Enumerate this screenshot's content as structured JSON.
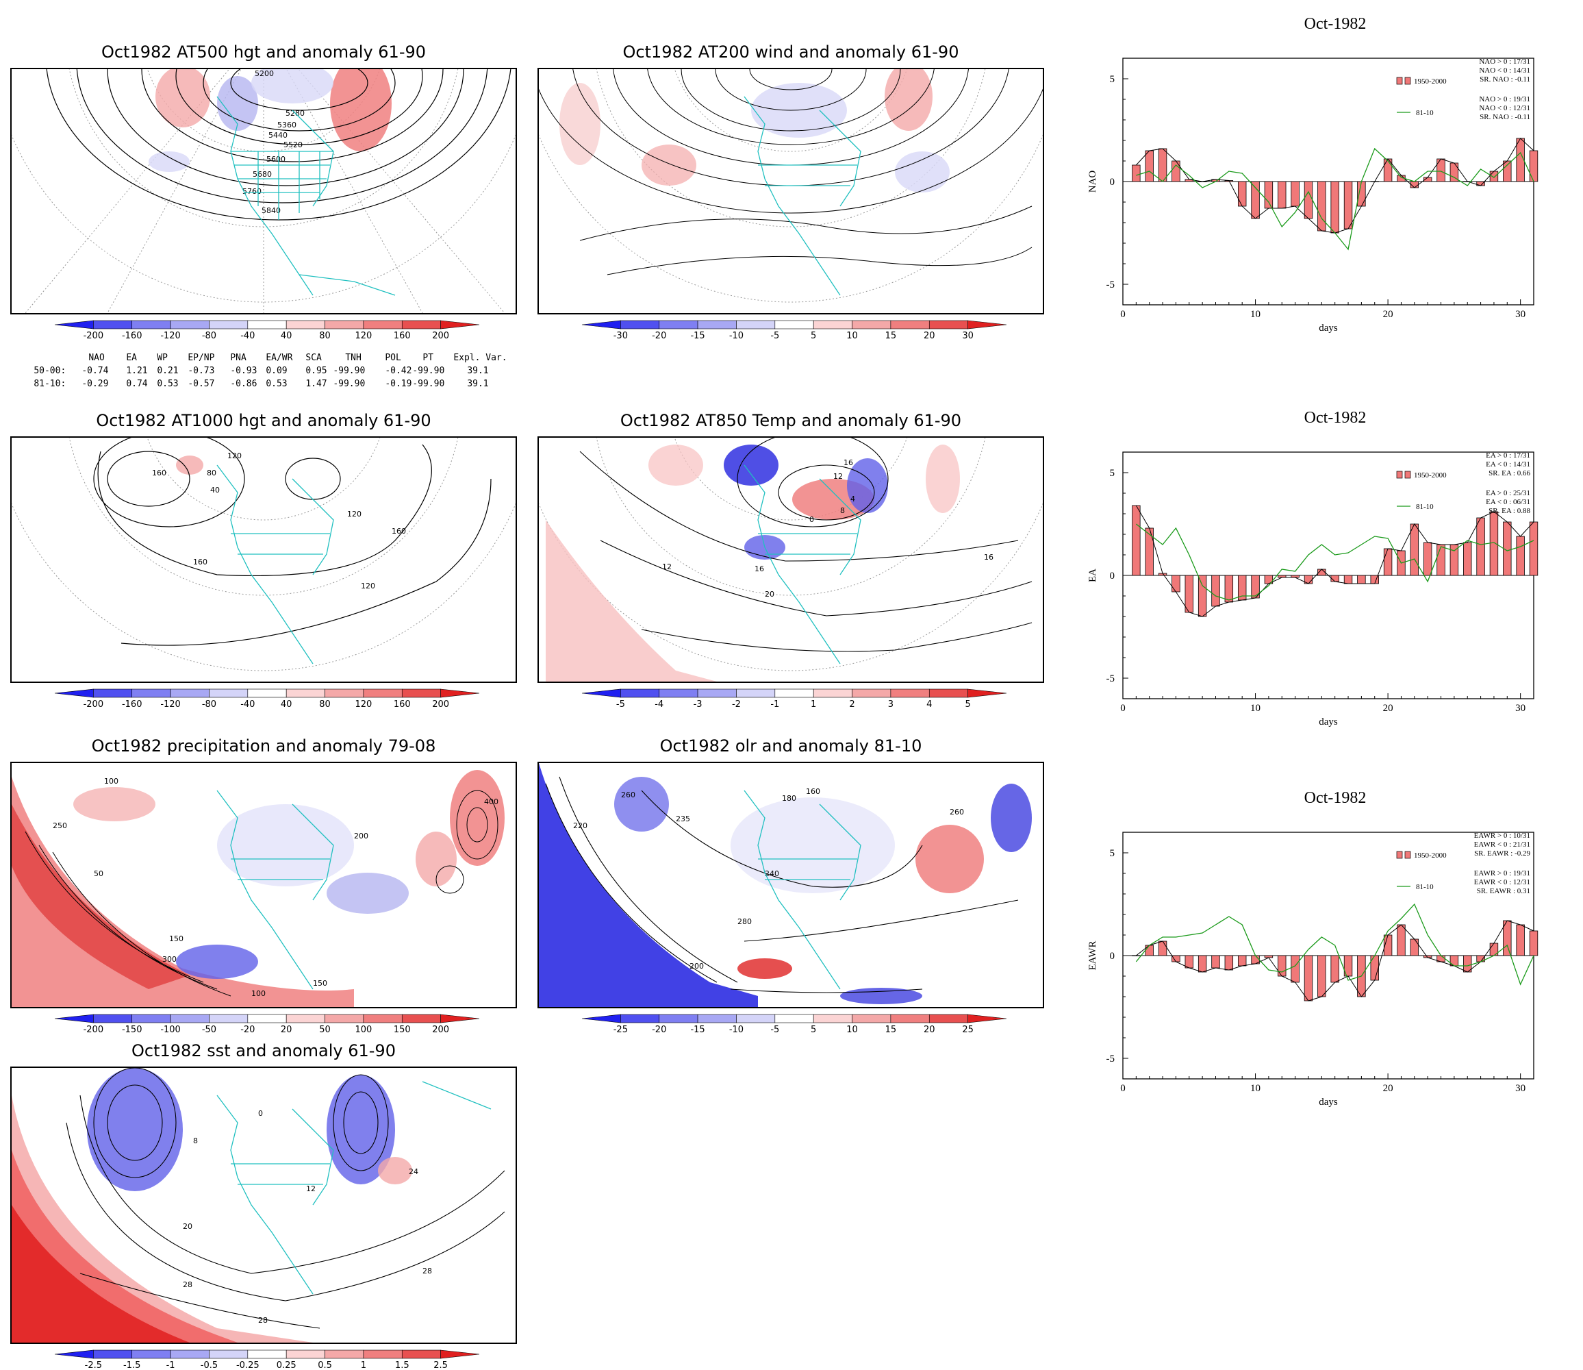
{
  "maps": [
    {
      "id": "at500",
      "title": "Oct1982 AT500 hgt and anomaly 61-90",
      "contour_labels": [
        "5200",
        "5280",
        "5360",
        "5440",
        "5520",
        "5600",
        "5680",
        "5760",
        "5840"
      ],
      "colorbar": [
        "-200",
        "-160",
        "-120",
        "-80",
        "-40",
        "40",
        "80",
        "120",
        "160",
        "200"
      ]
    },
    {
      "id": "at200",
      "title": "Oct1982 AT200 wind and anomaly 61-90",
      "contour_labels": [],
      "colorbar": [
        "-30",
        "-20",
        "-15",
        "-10",
        "-5",
        "5",
        "10",
        "15",
        "20",
        "30"
      ]
    },
    {
      "id": "at1000",
      "title": "Oct1982 AT1000 hgt and anomaly 61-90",
      "contour_labels": [
        "160",
        "120",
        "80",
        "40",
        "160",
        "120",
        "160",
        "120"
      ],
      "colorbar": [
        "-200",
        "-160",
        "-120",
        "-80",
        "-40",
        "40",
        "80",
        "120",
        "160",
        "200"
      ]
    },
    {
      "id": "at850",
      "title": "Oct1982 AT850 Temp and anomaly 61-90",
      "contour_labels": [
        "16",
        "12",
        "8",
        "4",
        "0",
        "20",
        "16",
        "12",
        "16"
      ],
      "colorbar": [
        "-5",
        "-4",
        "-3",
        "-2",
        "-1",
        "1",
        "2",
        "3",
        "4",
        "5"
      ]
    },
    {
      "id": "precip",
      "title": "Oct1982 precipitation and anomaly 79-08",
      "contour_labels": [
        "100",
        "250",
        "50",
        "150",
        "200",
        "400",
        "300",
        "150",
        "100"
      ],
      "colorbar": [
        "-200",
        "-150",
        "-100",
        "-50",
        "-20",
        "20",
        "50",
        "100",
        "150",
        "200"
      ]
    },
    {
      "id": "olr",
      "title": "Oct1982 olr and anomaly 81-10",
      "contour_labels": [
        "235",
        "260",
        "220",
        "240",
        "280",
        "200",
        "180",
        "160",
        "260"
      ],
      "colorbar": [
        "-25",
        "-20",
        "-15",
        "-10",
        "-5",
        "5",
        "10",
        "15",
        "20",
        "25"
      ]
    },
    {
      "id": "sst",
      "title": "Oct1982 sst and anomaly 61-90",
      "contour_labels": [
        "0",
        "8",
        "12",
        "24",
        "20",
        "28",
        "28",
        "28"
      ],
      "colorbar": [
        "-2.5",
        "-1.5",
        "-1",
        "-0.5",
        "-0.25",
        "0.25",
        "0.5",
        "1",
        "1.5",
        "2.5"
      ]
    }
  ],
  "index_table": {
    "header": [
      "NAO",
      "EA",
      "WP",
      "EP/NP",
      "PNA",
      "EA/WR",
      "SCA",
      "TNH",
      "POL",
      "PT",
      "Expl. Var."
    ],
    "rows": [
      {
        "label": "50-00:",
        "values": [
          "-0.74",
          "1.21",
          "0.21",
          "-0.73",
          "-0.93",
          "0.09",
          "0.95",
          "-99.90",
          "-0.42",
          "-99.90",
          "39.1"
        ]
      },
      {
        "label": "81-10:",
        "values": [
          "-0.29",
          "0.74",
          "0.53",
          "-0.57",
          "-0.86",
          "0.53",
          "1.47",
          "-99.90",
          "-0.19",
          "-99.90",
          "39.1"
        ]
      }
    ]
  },
  "chart_data": [
    {
      "type": "bar",
      "title": "Oct-1982",
      "xlabel": "days",
      "ylabel": "NAO",
      "xlim": [
        0,
        31
      ],
      "ylim": [
        -6,
        6
      ],
      "xticks": [
        "0",
        "10",
        "20",
        "30"
      ],
      "yticks": [
        "5",
        "0",
        "-5"
      ],
      "legend": {
        "bar_name": "1950-2000",
        "line_name": "81-10",
        "stats1": [
          "NAO > 0 : 17/31",
          "NAO < 0 : 14/31",
          "SR. NAO : -0.11"
        ],
        "stats2": [
          "NAO > 0 : 19/31",
          "NAO < 0 : 12/31",
          "SR. NAO : -0.11"
        ]
      },
      "colors": {
        "bar": "#f07878",
        "line": "#1a9a1a"
      },
      "days": [
        1,
        2,
        3,
        4,
        5,
        6,
        7,
        8,
        9,
        10,
        11,
        12,
        13,
        14,
        15,
        16,
        17,
        18,
        19,
        20,
        21,
        22,
        23,
        24,
        25,
        26,
        27,
        28,
        29,
        30,
        31
      ],
      "series": [
        {
          "name": "1950-2000",
          "values": [
            0.8,
            1.5,
            1.6,
            1.0,
            0.1,
            0.0,
            0.1,
            0.05,
            -1.2,
            -1.8,
            -1.3,
            -1.3,
            -1.2,
            -1.8,
            -2.4,
            -2.5,
            -2.3,
            -1.2,
            0.0,
            1.1,
            0.3,
            -0.3,
            0.2,
            1.1,
            0.9,
            0.0,
            -0.2,
            0.5,
            1.0,
            2.1,
            1.5
          ]
        },
        {
          "name": "81-10",
          "values": [
            0.3,
            0.5,
            0.0,
            0.8,
            0.3,
            -0.3,
            0.0,
            0.5,
            0.4,
            -0.3,
            -1.0,
            -2.2,
            -1.5,
            -0.5,
            -1.8,
            -2.5,
            -3.3,
            0.0,
            1.6,
            1.0,
            0.2,
            0.0,
            0.5,
            0.5,
            0.2,
            -0.2,
            0.6,
            0.2,
            0.8,
            1.4,
            0.0
          ]
        }
      ]
    },
    {
      "type": "bar",
      "title": "Oct-1982",
      "xlabel": "days",
      "ylabel": "EA",
      "xlim": [
        0,
        31
      ],
      "ylim": [
        -6,
        6
      ],
      "xticks": [
        "0",
        "10",
        "20",
        "30"
      ],
      "yticks": [
        "5",
        "0",
        "-5"
      ],
      "legend": {
        "bar_name": "1950-2000",
        "line_name": "81-10",
        "stats1": [
          "EA > 0 : 17/31",
          "EA < 0 : 14/31",
          "SR. EA : 0.66"
        ],
        "stats2": [
          "EA > 0 : 25/31",
          "EA < 0 : 06/31",
          "SR. EA : 0.88"
        ]
      },
      "colors": {
        "bar": "#f07878",
        "line": "#1a9a1a"
      },
      "days": [
        1,
        2,
        3,
        4,
        5,
        6,
        7,
        8,
        9,
        10,
        11,
        12,
        13,
        14,
        15,
        16,
        17,
        18,
        19,
        20,
        21,
        22,
        23,
        24,
        25,
        26,
        27,
        28,
        29,
        30,
        31
      ],
      "series": [
        {
          "name": "1950-2000",
          "values": [
            3.4,
            2.3,
            0.1,
            -0.8,
            -1.8,
            -2.0,
            -1.5,
            -1.3,
            -1.2,
            -1.1,
            -0.4,
            -0.1,
            -0.1,
            -0.4,
            0.3,
            -0.3,
            -0.4,
            -0.4,
            -0.4,
            1.3,
            1.2,
            2.5,
            1.6,
            1.5,
            1.5,
            1.6,
            2.8,
            3.1,
            2.6,
            1.9,
            2.6
          ]
        },
        {
          "name": "81-10",
          "values": [
            2.5,
            2.0,
            1.5,
            2.3,
            1.0,
            -0.5,
            -1.0,
            -1.2,
            -1.0,
            -1.0,
            -0.5,
            0.3,
            0.2,
            1.0,
            1.5,
            1.0,
            1.1,
            1.5,
            1.9,
            1.8,
            0.6,
            0.8,
            -0.3,
            1.4,
            1.2,
            1.7,
            1.5,
            1.6,
            1.2,
            1.4,
            1.7
          ]
        }
      ]
    },
    {
      "type": "bar",
      "title": "Oct-1982",
      "xlabel": "days",
      "ylabel": "EAWR",
      "xlim": [
        0,
        31
      ],
      "ylim": [
        -6,
        6
      ],
      "xticks": [
        "0",
        "10",
        "20",
        "30"
      ],
      "yticks": [
        "5",
        "0",
        "-5"
      ],
      "legend": {
        "bar_name": "1950-2000",
        "line_name": "81-10",
        "stats1": [
          "EAWR > 0 : 10/31",
          "EAWR < 0 : 21/31",
          "SR. EAWR : -0.29"
        ],
        "stats2": [
          "EAWR > 0 : 19/31",
          "EAWR < 0 : 12/31",
          "SR. EAWR : 0.31"
        ]
      },
      "colors": {
        "bar": "#f07878",
        "line": "#1a9a1a"
      },
      "days": [
        1,
        2,
        3,
        4,
        5,
        6,
        7,
        8,
        9,
        10,
        11,
        12,
        13,
        14,
        15,
        16,
        17,
        18,
        19,
        20,
        21,
        22,
        23,
        24,
        25,
        26,
        27,
        28,
        29,
        30,
        31
      ],
      "series": [
        {
          "name": "1950-2000",
          "values": [
            0.0,
            0.5,
            0.7,
            -0.3,
            -0.6,
            -0.8,
            -0.6,
            -0.7,
            -0.5,
            -0.4,
            -0.1,
            -1.0,
            -1.3,
            -2.2,
            -2.0,
            -1.3,
            -1.0,
            -2.0,
            -1.2,
            1.0,
            1.5,
            0.8,
            -0.1,
            -0.3,
            -0.5,
            -0.8,
            -0.3,
            0.6,
            1.7,
            1.5,
            1.2
          ]
        },
        {
          "name": "81-10",
          "values": [
            -0.3,
            0.5,
            0.9,
            0.9,
            1.0,
            1.1,
            1.5,
            1.9,
            1.5,
            0.0,
            -0.7,
            -0.8,
            -0.5,
            0.3,
            0.9,
            0.5,
            -1.2,
            -1.0,
            0.0,
            1.2,
            1.8,
            2.5,
            1.0,
            0.0,
            -0.5,
            -0.5,
            -0.3,
            0.0,
            0.5,
            -1.4,
            0.0
          ]
        }
      ]
    }
  ]
}
